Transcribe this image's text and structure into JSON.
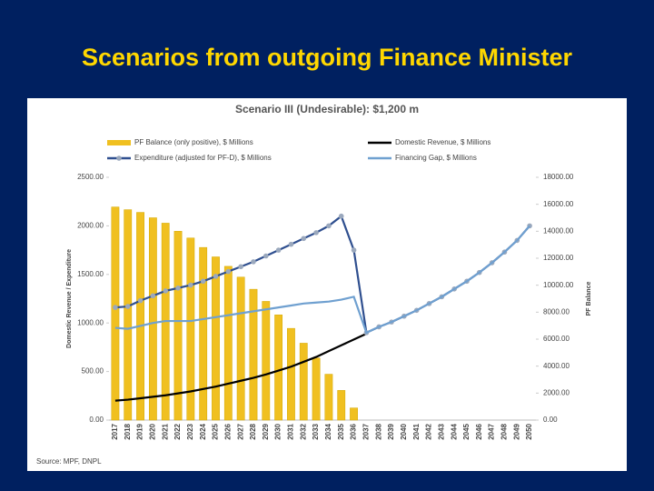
{
  "slide_title": "Scenarios from outgoing Finance Minister",
  "chart_data": {
    "type": "bar-line",
    "title": "Scenario III (Undesirable): $1,200 m",
    "y_label": "Domestic Revenue / Expenditure",
    "y2_label": "PF Balance",
    "source": "Source: MPF, DNPL",
    "categories": [
      "2017",
      "2018",
      "2019",
      "2020",
      "2021",
      "2022",
      "2023",
      "2024",
      "2025",
      "2026",
      "2027",
      "2028",
      "2029",
      "2030",
      "2031",
      "2032",
      "2033",
      "2034",
      "2035",
      "2036",
      "2037",
      "2038",
      "2039",
      "2040",
      "2041",
      "2042",
      "2043",
      "2044",
      "2045",
      "2046",
      "2047",
      "2048",
      "2049",
      "2050"
    ],
    "ylim": [
      0,
      2500
    ],
    "yticks": [
      {
        "value": 0,
        "label": "0.00"
      },
      {
        "value": 500,
        "label": "500.00"
      },
      {
        "value": 1000,
        "label": "1000.00"
      },
      {
        "value": 1500,
        "label": "1500.00"
      },
      {
        "value": 2000,
        "label": "2000.00"
      },
      {
        "value": 2500,
        "label": "2500.00"
      }
    ],
    "y2lim": [
      0,
      18000
    ],
    "y2ticks": [
      {
        "value": 0,
        "label": "0.00"
      },
      {
        "value": 2000,
        "label": "2000.00"
      },
      {
        "value": 4000,
        "label": "4000.00"
      },
      {
        "value": 6000,
        "label": "6000.00"
      },
      {
        "value": 8000,
        "label": "8000.00"
      },
      {
        "value": 10000,
        "label": "10000.00"
      },
      {
        "value": 12000,
        "label": "12000.00"
      },
      {
        "value": 14000,
        "label": "14000.00"
      },
      {
        "value": 16000,
        "label": "16000.00"
      },
      {
        "value": 18000,
        "label": "18000.00"
      }
    ],
    "series": [
      {
        "name": "PF Balance (only positive), $ Millions",
        "type": "bar",
        "axis": "y2",
        "color": "#f0c020",
        "values": [
          15800,
          15600,
          15400,
          15000,
          14600,
          14000,
          13500,
          12800,
          12100,
          11400,
          10600,
          9700,
          8800,
          7800,
          6800,
          5700,
          4600,
          3400,
          2200,
          900,
          null,
          null,
          null,
          null,
          null,
          null,
          null,
          null,
          null,
          null,
          null,
          null,
          null,
          null
        ]
      },
      {
        "name": "Domestic Revenue, $ Millions",
        "type": "line",
        "color": "#000000",
        "values": [
          200,
          210,
          225,
          240,
          255,
          275,
          295,
          320,
          345,
          375,
          405,
          435,
          470,
          510,
          550,
          600,
          650,
          710,
          770,
          830,
          890,
          null,
          null,
          null,
          null,
          null,
          null,
          null,
          null,
          null,
          null,
          null,
          null,
          null
        ]
      },
      {
        "name": "Expenditure (adjusted for PF-D), $ Millions",
        "type": "line",
        "markers": true,
        "color": "#2f4f8f",
        "values": [
          1160,
          1170,
          1230,
          1280,
          1330,
          1360,
          1390,
          1430,
          1480,
          1530,
          1580,
          1630,
          1690,
          1750,
          1810,
          1870,
          1930,
          2000,
          2100,
          1750,
          900,
          960,
          1010,
          1070,
          1130,
          1200,
          1270,
          1350,
          1430,
          1520,
          1620,
          1730,
          1850,
          2000
        ]
      },
      {
        "name": "Financing Gap, $ Millions",
        "type": "line",
        "color": "#6fa0d0",
        "values": [
          950,
          940,
          970,
          1000,
          1020,
          1020,
          1020,
          1040,
          1060,
          1080,
          1100,
          1120,
          1140,
          1160,
          1180,
          1200,
          1210,
          1220,
          1240,
          1270,
          900,
          960,
          1010,
          1070,
          1130,
          1200,
          1270,
          1350,
          1430,
          1520,
          1620,
          1730,
          1850,
          2000
        ]
      }
    ]
  }
}
